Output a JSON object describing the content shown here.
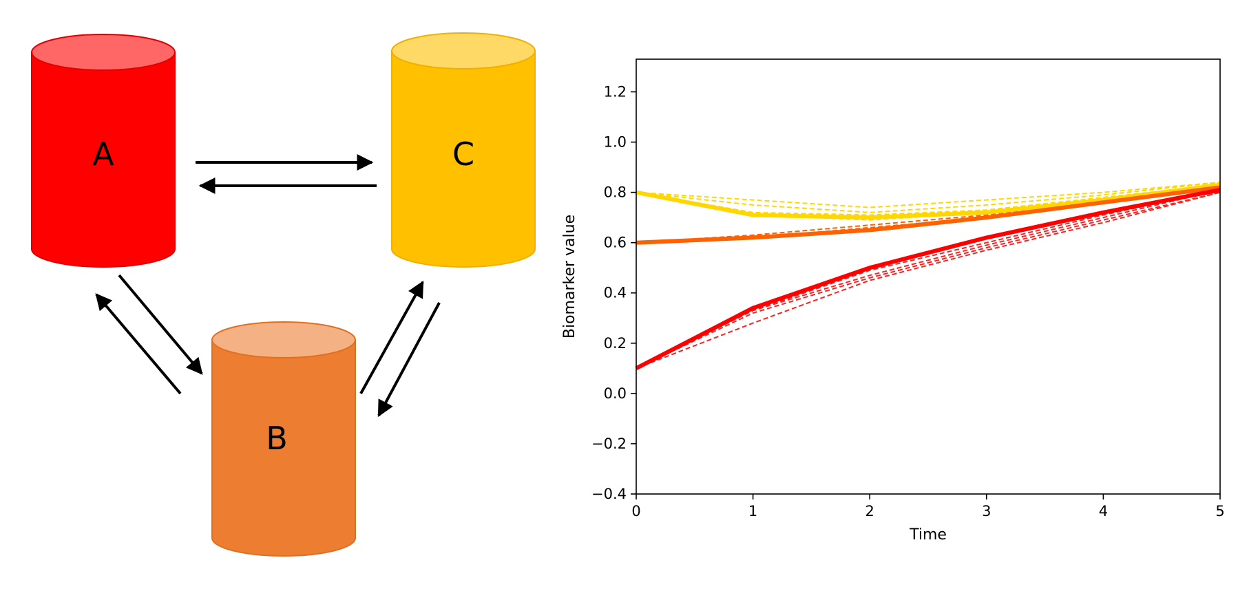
{
  "diagram": {
    "nodes": [
      {
        "id": "A",
        "label": "A",
        "color": "#FF0000",
        "top_color": "#FF6666",
        "stroke": "#E00000"
      },
      {
        "id": "B",
        "label": "B",
        "color": "#ED7D31",
        "top_color": "#F4B183",
        "stroke": "#E07020"
      },
      {
        "id": "C",
        "label": "C",
        "color": "#FFC000",
        "top_color": "#FFD966",
        "stroke": "#F0B000"
      }
    ],
    "edges": [
      {
        "from": "A",
        "to": "C"
      },
      {
        "from": "C",
        "to": "A"
      },
      {
        "from": "A",
        "to": "B"
      },
      {
        "from": "B",
        "to": "A"
      },
      {
        "from": "B",
        "to": "C"
      },
      {
        "from": "C",
        "to": "B"
      }
    ]
  },
  "chart_data": {
    "type": "line",
    "title": "",
    "xlabel": "Time",
    "ylabel": "Biomarker value",
    "xlim": [
      0,
      5
    ],
    "ylim": [
      -0.4,
      1.33
    ],
    "xticks": [
      0,
      1,
      2,
      3,
      4,
      5
    ],
    "xtick_labels": [
      "0",
      "1",
      "2",
      "3",
      "4",
      "5"
    ],
    "yticks": [
      -0.4,
      -0.2,
      0.0,
      0.2,
      0.4,
      0.6,
      0.8,
      1.0,
      1.2
    ],
    "ytick_labels": [
      "−0.4",
      "−0.2",
      "0.0",
      "0.2",
      "0.4",
      "0.6",
      "0.8",
      "1.0",
      "1.2"
    ],
    "grid": false,
    "x": [
      0,
      1,
      2,
      3,
      4,
      5
    ],
    "series": [
      {
        "group": "C",
        "style": "dashed",
        "color": "#FFD700",
        "values": [
          0.8,
          0.77,
          0.74,
          0.77,
          0.8,
          0.84
        ]
      },
      {
        "group": "C",
        "style": "dashed",
        "color": "#FFD700",
        "values": [
          0.8,
          0.75,
          0.72,
          0.75,
          0.79,
          0.84
        ]
      },
      {
        "group": "C",
        "style": "dashed",
        "color": "#FFD700",
        "values": [
          0.8,
          0.72,
          0.71,
          0.73,
          0.78,
          0.83
        ]
      },
      {
        "group": "C",
        "style": "dashed",
        "color": "#FFD700",
        "values": [
          0.8,
          0.71,
          0.69,
          0.72,
          0.77,
          0.83
        ]
      },
      {
        "group": "B",
        "style": "dashed",
        "color": "#FF6000",
        "values": [
          0.6,
          0.63,
          0.67,
          0.71,
          0.76,
          0.82
        ]
      },
      {
        "group": "B",
        "style": "dashed",
        "color": "#FF6000",
        "values": [
          0.6,
          0.62,
          0.66,
          0.7,
          0.76,
          0.82
        ]
      },
      {
        "group": "A",
        "style": "dashed",
        "color": "#FF2020",
        "values": [
          0.1,
          0.33,
          0.49,
          0.6,
          0.71,
          0.81
        ]
      },
      {
        "group": "A",
        "style": "dashed",
        "color": "#FF2020",
        "values": [
          0.1,
          0.33,
          0.47,
          0.59,
          0.7,
          0.81
        ]
      },
      {
        "group": "A",
        "style": "dashed",
        "color": "#FF2020",
        "values": [
          0.1,
          0.32,
          0.46,
          0.58,
          0.69,
          0.8
        ]
      },
      {
        "group": "A",
        "style": "dashed",
        "color": "#FF2020",
        "values": [
          0.1,
          0.28,
          0.45,
          0.57,
          0.68,
          0.8
        ]
      },
      {
        "group": "C",
        "style": "solid",
        "color": "#FFD700",
        "values": [
          0.8,
          0.71,
          0.7,
          0.72,
          0.77,
          0.83
        ]
      },
      {
        "group": "B",
        "style": "solid",
        "color": "#FF6000",
        "values": [
          0.6,
          0.62,
          0.65,
          0.7,
          0.76,
          0.82
        ]
      },
      {
        "group": "A",
        "style": "solid",
        "color": "#FF0000",
        "values": [
          0.1,
          0.34,
          0.5,
          0.62,
          0.72,
          0.81
        ]
      }
    ]
  }
}
